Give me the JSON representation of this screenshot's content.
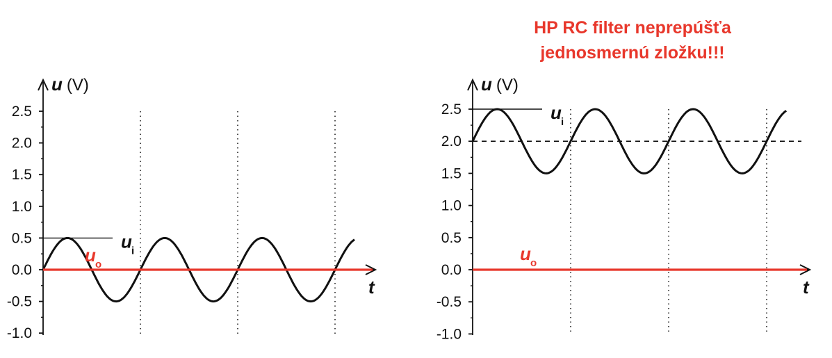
{
  "annotation": {
    "line1": "HP RC filter neprepúšťa",
    "line2": "jednosmernú zložku!!!"
  },
  "chart_data": [
    {
      "type": "line",
      "ylabel_symbol": "u",
      "ylabel_unit": "(V)",
      "xlabel": "t",
      "ylim": [
        -1.0,
        2.5
      ],
      "yticks": [
        "2.5",
        "2.0",
        "1.5",
        "1.0",
        "0.5",
        "0.0",
        "-0.5",
        "-1.0"
      ],
      "period_markers": [
        1,
        2,
        3
      ],
      "series": [
        {
          "name": "u",
          "subscript": "i",
          "color": "#111111",
          "function": "sine",
          "offset": 0.0,
          "amplitude": 0.5,
          "x_periods": [
            0,
            0.5,
            1,
            1.5,
            2,
            2.5,
            3
          ],
          "values": [
            0.0,
            0.0,
            0.0,
            0.0,
            0.0,
            0.0,
            0.0
          ],
          "peaks": [
            {
              "x_period": 0.25,
              "y": 0.5
            },
            {
              "x_period": 0.75,
              "y": -0.5
            },
            {
              "x_period": 1.25,
              "y": 0.5
            },
            {
              "x_period": 1.75,
              "y": -0.5
            },
            {
              "x_period": 2.25,
              "y": 0.5
            }
          ],
          "x_end_period": 3.2
        },
        {
          "name": "u",
          "subscript": "o",
          "color": "#e8372b",
          "function": "constant",
          "value": 0.0
        }
      ]
    },
    {
      "type": "line",
      "ylabel_symbol": "u",
      "ylabel_unit": "(V)",
      "xlabel": "t",
      "ylim": [
        -1.0,
        2.5
      ],
      "yticks": [
        "2.5",
        "2.0",
        "1.5",
        "1.0",
        "0.5",
        "0.0",
        "-0.5",
        "-1.0"
      ],
      "period_markers": [
        1,
        2,
        3
      ],
      "reference_line": 2.0,
      "series": [
        {
          "name": "u",
          "subscript": "i",
          "color": "#111111",
          "function": "sine",
          "offset": 2.0,
          "amplitude": 0.5,
          "peaks": [
            {
              "x_period": 0.25,
              "y": 2.5
            },
            {
              "x_period": 0.75,
              "y": 1.5
            },
            {
              "x_period": 1.25,
              "y": 2.5
            },
            {
              "x_period": 1.75,
              "y": 1.5
            }
          ],
          "x_end_period": 3.2
        },
        {
          "name": "u",
          "subscript": "o",
          "color": "#e8372b",
          "function": "constant",
          "value": 0.0
        }
      ]
    }
  ]
}
